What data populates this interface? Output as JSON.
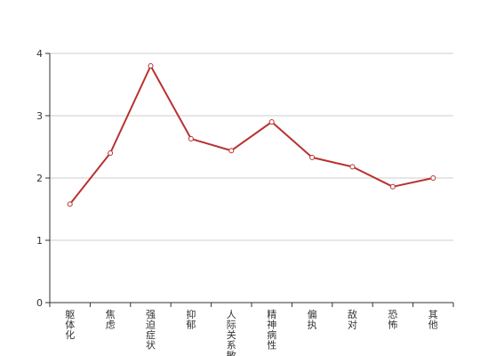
{
  "chart_data": {
    "type": "line",
    "categories": [
      "躯体化",
      "焦虑",
      "强迫症状",
      "抑郁",
      "人际关系敏感",
      "精神病性",
      "偏执",
      "敌对",
      "恐怖",
      "其他"
    ],
    "series": [
      {
        "values": [
          1.58,
          2.4,
          3.8,
          2.63,
          2.44,
          2.9,
          2.33,
          2.18,
          1.86,
          2.0
        ]
      }
    ],
    "title": "",
    "xlabel": "",
    "ylabel": "",
    "ylim": [
      0,
      4
    ],
    "yticks": [
      0,
      1,
      2,
      3,
      4
    ],
    "grid": true,
    "line_color": "#b83232",
    "marker_fill": "#ffffff"
  }
}
